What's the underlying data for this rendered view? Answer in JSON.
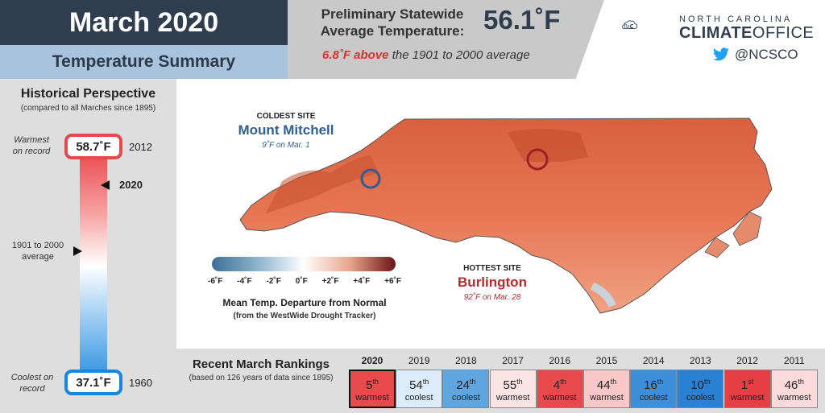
{
  "header": {
    "title": "March 2020",
    "subtitle": "Temperature Summary",
    "stat_label_line1": "Preliminary Statewide",
    "stat_label_line2": "Average Temperature:",
    "stat_value": "56.1˚F",
    "stat_note_highlight": "6.8˚F above",
    "stat_note_rest": "the 1901 to 2000 average"
  },
  "logo": {
    "small_text": "NORTH CAROLINA",
    "big_text_bold": "CLIMATE",
    "big_text_light": "OFFICE",
    "twitter_handle": "@NCSCO",
    "twitter_icon": "twitter-bird-icon",
    "color": "#2f3d4e"
  },
  "historical": {
    "title": "Historical Perspective",
    "subtitle": "(compared to all Marches since 1895)",
    "warmest_label_line1": "Warmest",
    "warmest_label_line2": "on record",
    "warmest_value": "58.7˚F",
    "warmest_year": "2012",
    "current_year": "2020",
    "normal_label_line1": "1901 to 2000",
    "normal_label_line2": "average",
    "coolest_label_line1": "Coolest on",
    "coolest_label_line2": "record",
    "coolest_value": "37.1˚F",
    "coolest_year": "1960",
    "warm_color": "#e34a4f",
    "cool_color": "#1a86d8"
  },
  "map": {
    "coldest": {
      "caption": "COLDEST SITE",
      "name": "Mount Mitchell",
      "detail": "9˚F on Mar. 1",
      "color": "#2f5f8f"
    },
    "hottest": {
      "caption": "HOTTEST SITE",
      "name": "Burlington",
      "detail": "92˚F on Mar. 28",
      "color": "#b5282c"
    },
    "legend": {
      "ticks": [
        "-6˚F",
        "-4˚F",
        "-2˚F",
        "0˚F",
        "+2˚F",
        "+4˚F",
        "+6˚F"
      ],
      "title": "Mean Temp. Departure from Normal",
      "subtitle": "(from the WestWide Drought Tracker)"
    }
  },
  "rankings": {
    "title": "Recent March Rankings",
    "subtitle": "(based on 126 years of data since 1895)",
    "items": [
      {
        "year": "2020",
        "rank": "5",
        "suffix": "th",
        "desc": "warmest",
        "color": "#e84a4c",
        "current": true
      },
      {
        "year": "2019",
        "rank": "54",
        "suffix": "th",
        "desc": "coolest",
        "color": "#dcecfa",
        "current": false
      },
      {
        "year": "2018",
        "rank": "24",
        "suffix": "th",
        "desc": "coolest",
        "color": "#5fa6e0",
        "current": false
      },
      {
        "year": "2017",
        "rank": "55",
        "suffix": "th",
        "desc": "warmest",
        "color": "#fbe4e4",
        "current": false
      },
      {
        "year": "2016",
        "rank": "4",
        "suffix": "th",
        "desc": "warmest",
        "color": "#e84a4c",
        "current": false
      },
      {
        "year": "2015",
        "rank": "44",
        "suffix": "th",
        "desc": "warmest",
        "color": "#f8c7c7",
        "current": false
      },
      {
        "year": "2014",
        "rank": "16",
        "suffix": "th",
        "desc": "coolest",
        "color": "#3d8fd9",
        "current": false
      },
      {
        "year": "2013",
        "rank": "10",
        "suffix": "th",
        "desc": "coolest",
        "color": "#2a80d2",
        "current": false
      },
      {
        "year": "2012",
        "rank": "1",
        "suffix": "st",
        "desc": "warmest",
        "color": "#e63f43",
        "current": false
      },
      {
        "year": "2011",
        "rank": "46",
        "suffix": "th",
        "desc": "warmest",
        "color": "#fadada",
        "current": false
      }
    ]
  }
}
